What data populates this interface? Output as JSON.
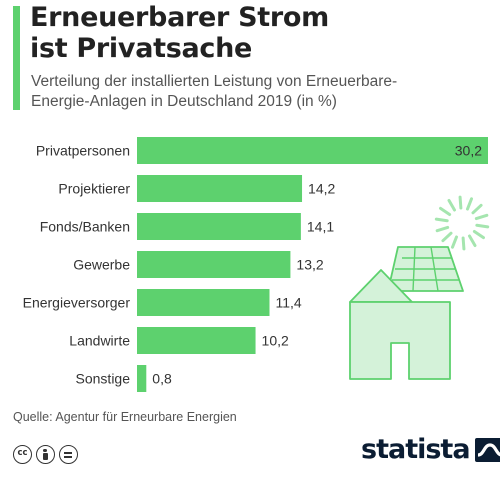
{
  "header": {
    "title_line1": "Erneuerbarer Strom",
    "title_line2": "ist Privatsache",
    "subtitle_line1": "Verteilung der installierten Leistung von Erneuerbare-",
    "subtitle_line2": "Energie-Anlagen in Deutschland 2019 (in %)"
  },
  "colors": {
    "accent": "#5dd16e",
    "bar": "#5dd16e",
    "illustration_fill": "#d4f2d9",
    "illustration_stroke": "#5dd16e",
    "brand": "#0b1d33"
  },
  "chart_data": {
    "type": "bar",
    "orientation": "horizontal",
    "title": "Erneuerbarer Strom ist Privatsache",
    "subtitle": "Verteilung der installierten Leistung von Erneuerbare-Energie-Anlagen in Deutschland 2019 (in %)",
    "categories": [
      "Privatpersonen",
      "Projektierer",
      "Fonds/Banken",
      "Gewerbe",
      "Energieversorger",
      "Landwirte",
      "Sonstige"
    ],
    "values": [
      30.2,
      14.2,
      14.1,
      13.2,
      11.4,
      10.2,
      0.8
    ],
    "value_labels": [
      "30,2",
      "14,2",
      "14,1",
      "13,2",
      "11,4",
      "10,2",
      "0,8"
    ],
    "xlim": [
      0,
      30.2
    ],
    "grid": false,
    "legend": "none"
  },
  "illustration": {
    "icons": [
      "sun-icon",
      "solar-panel-icon",
      "house-icon"
    ]
  },
  "footer": {
    "source": "Quelle: Agentur für Erneurbare Energien",
    "license_icons": [
      "cc-icon",
      "by-icon",
      "nd-icon"
    ],
    "brand": "statista"
  }
}
